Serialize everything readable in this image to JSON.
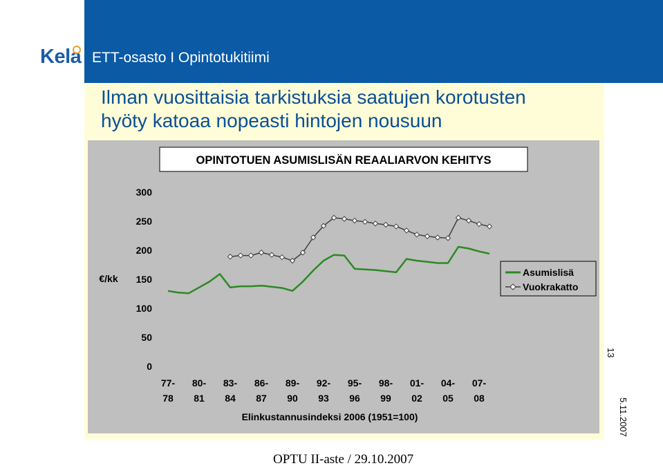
{
  "header": {
    "logo_text": "Kela",
    "department": "ETT-osasto I Opintotukitiimi"
  },
  "slide": {
    "title_line1": "Ilman vuosittaisia tarkistuksia saatujen korotusten",
    "title_line2": "hyöty katoaa nopeasti hintojen nousuun",
    "page_number": "13",
    "date": "5.11.2007",
    "footer": "OPTU II-aste / 29.10.2007"
  },
  "colors": {
    "header_blue": "#0a5aa6",
    "title_blue": "#0a4f96",
    "slide_background": "#fffdd8",
    "asumislisa_green": "#2a8a22",
    "vuokrakatto_gray": "#404040"
  },
  "chart_data": {
    "type": "line",
    "title": "OPINTOTUEN ASUMISLISÄN REAALIARVON KEHITYS",
    "ylabel": "€/kk",
    "xlabel": "Elinkustannusindeksi 2006 (1951=100)",
    "ylim": [
      0,
      300
    ],
    "yticks": [
      0,
      50,
      100,
      150,
      200,
      250,
      300
    ],
    "grid": false,
    "legend_position": "right",
    "xtick_labels": [
      {
        "top": "77-",
        "bottom": "78"
      },
      {
        "top": "80-",
        "bottom": "81"
      },
      {
        "top": "83-",
        "bottom": "84"
      },
      {
        "top": "86-",
        "bottom": "87"
      },
      {
        "top": "89-",
        "bottom": "90"
      },
      {
        "top": "92-",
        "bottom": "93"
      },
      {
        "top": "95-",
        "bottom": "96"
      },
      {
        "top": "98-",
        "bottom": "99"
      },
      {
        "top": "01-",
        "bottom": "02"
      },
      {
        "top": "04-",
        "bottom": "05"
      },
      {
        "top": "07-",
        "bottom": "08"
      }
    ],
    "xtick_positions": [
      0,
      3,
      6,
      9,
      12,
      15,
      18,
      21,
      24,
      27,
      30
    ],
    "x_count": 32,
    "series": [
      {
        "name": "Asumislisä",
        "marker": "none",
        "values": [
          130,
          127,
          126,
          136,
          146,
          159,
          136,
          138,
          138,
          139,
          137,
          135,
          130,
          146,
          165,
          182,
          192,
          191,
          168,
          167,
          166,
          164,
          162,
          185,
          182,
          180,
          178,
          178,
          206,
          203,
          198,
          194
        ]
      },
      {
        "name": "Vuokrakatto",
        "marker": "diamond",
        "values": [
          null,
          null,
          null,
          null,
          null,
          null,
          189,
          191,
          191,
          196,
          192,
          188,
          182,
          196,
          222,
          242,
          256,
          254,
          251,
          249,
          246,
          244,
          241,
          234,
          227,
          224,
          222,
          221,
          256,
          251,
          245,
          241
        ]
      }
    ]
  }
}
